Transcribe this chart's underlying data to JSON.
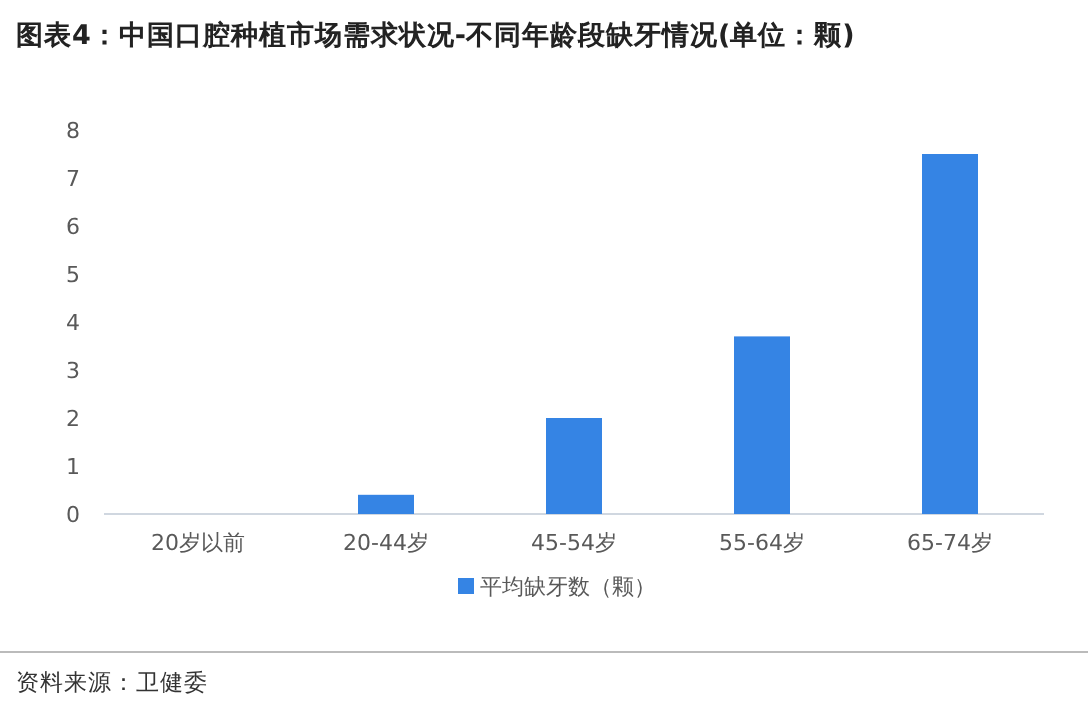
{
  "chart_data": {
    "type": "bar",
    "title": "图表4：中国口腔种植市场需求状况-不同年龄段缺牙情况(单位：颗)",
    "categories": [
      "20岁以前",
      "20-44岁",
      "45-54岁",
      "55-64岁",
      "65-74岁"
    ],
    "series": [
      {
        "name": "平均缺牙数（颗）",
        "color": "#3584e4",
        "values": [
          0,
          0.4,
          2,
          3.7,
          7.5
        ]
      }
    ],
    "ylim": [
      0,
      8
    ],
    "yticks": [
      0,
      1,
      2,
      3,
      4,
      5,
      6,
      7,
      8
    ],
    "grid": false,
    "legend": "bottom",
    "annotations": [
      "资料来源：卫健委"
    ]
  }
}
